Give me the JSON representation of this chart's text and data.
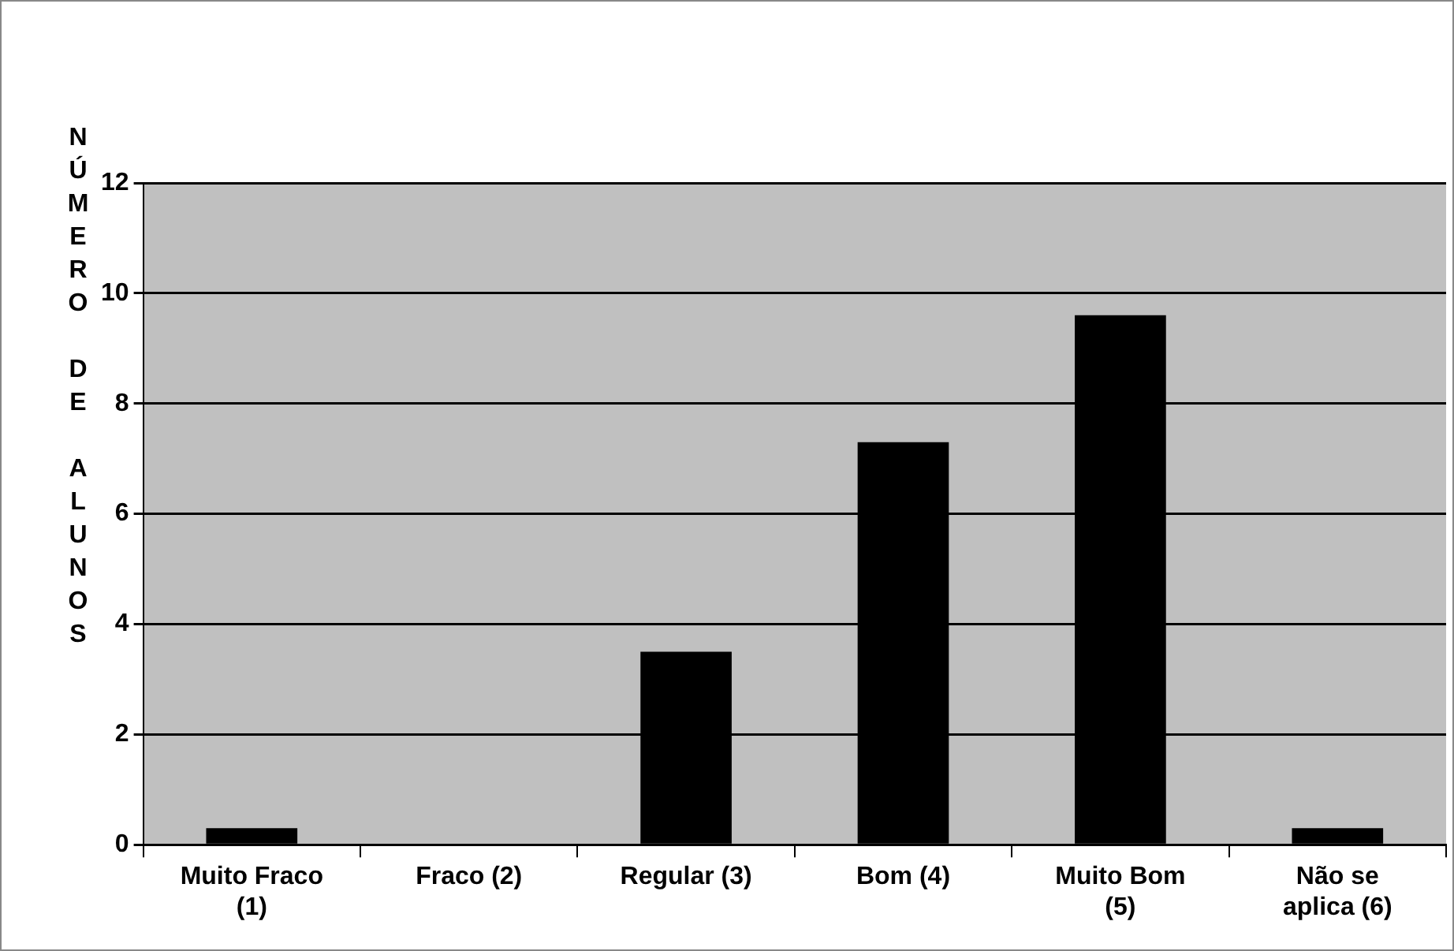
{
  "chart_data": {
    "type": "bar",
    "ylabel": "NÚMERO DE ALUNOS",
    "categories": [
      "Muito Fraco (1)",
      "Fraco (2)",
      "Regular (3)",
      "Bom (4)",
      "Muito Bom (5)",
      "Não se aplica (6)"
    ],
    "values": [
      0.3,
      0,
      3.5,
      7.3,
      9.6,
      0.3
    ],
    "color": "#000000",
    "ylim": [
      0,
      12
    ],
    "yticks": [
      0,
      2,
      4,
      6,
      8,
      10,
      12
    ],
    "grid": "y",
    "legend": false
  }
}
